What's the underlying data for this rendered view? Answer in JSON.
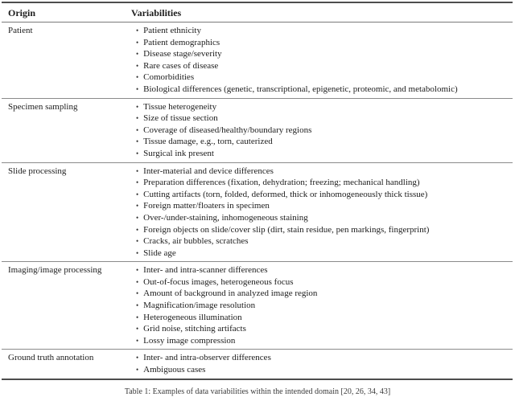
{
  "icons": {
    "bullet": "•"
  },
  "table": {
    "columns": [
      "Origin",
      "Variabilities"
    ],
    "rows": [
      {
        "origin": "Patient",
        "items": [
          "Patient ethnicity",
          "Patient demographics",
          "Disease stage/severity",
          "Rare cases of disease",
          "Comorbidities",
          "Biological differences (genetic, transcriptional, epigenetic, proteomic, and metabolomic)"
        ]
      },
      {
        "origin": "Specimen sampling",
        "items": [
          "Tissue heterogeneity",
          "Size of tissue section",
          "Coverage of diseased/healthy/boundary regions",
          "Tissue damage, e.g., torn, cauterized",
          "Surgical ink present"
        ]
      },
      {
        "origin": "Slide processing",
        "items": [
          "Inter-material and device differences",
          "Preparation differences (fixation, dehydration; freezing; mechanical handling)",
          "Cutting artifacts (torn, folded, deformed, thick or inhomogeneously thick tissue)",
          "Foreign matter/floaters in specimen",
          "Over-/under-staining, inhomogeneous staining",
          "Foreign objects on slide/cover slip (dirt, stain residue, pen markings, fingerprint)",
          "Cracks, air bubbles, scratches",
          "Slide age"
        ]
      },
      {
        "origin": "Imaging/image processing",
        "items": [
          "Inter- and intra-scanner differences",
          "Out-of-focus images, heterogeneous focus",
          "Amount of background in analyzed image region",
          "Magnification/image resolution",
          "Heterogeneous illumination",
          "Grid noise, stitching artifacts",
          "Lossy image compression"
        ]
      },
      {
        "origin": "Ground truth annotation",
        "items": [
          "Inter- and intra-observer differences",
          "Ambiguous cases"
        ]
      }
    ]
  },
  "caption": "Table 1: Examples of data variabilities within the intended domain [20, 26, 34, 43]"
}
